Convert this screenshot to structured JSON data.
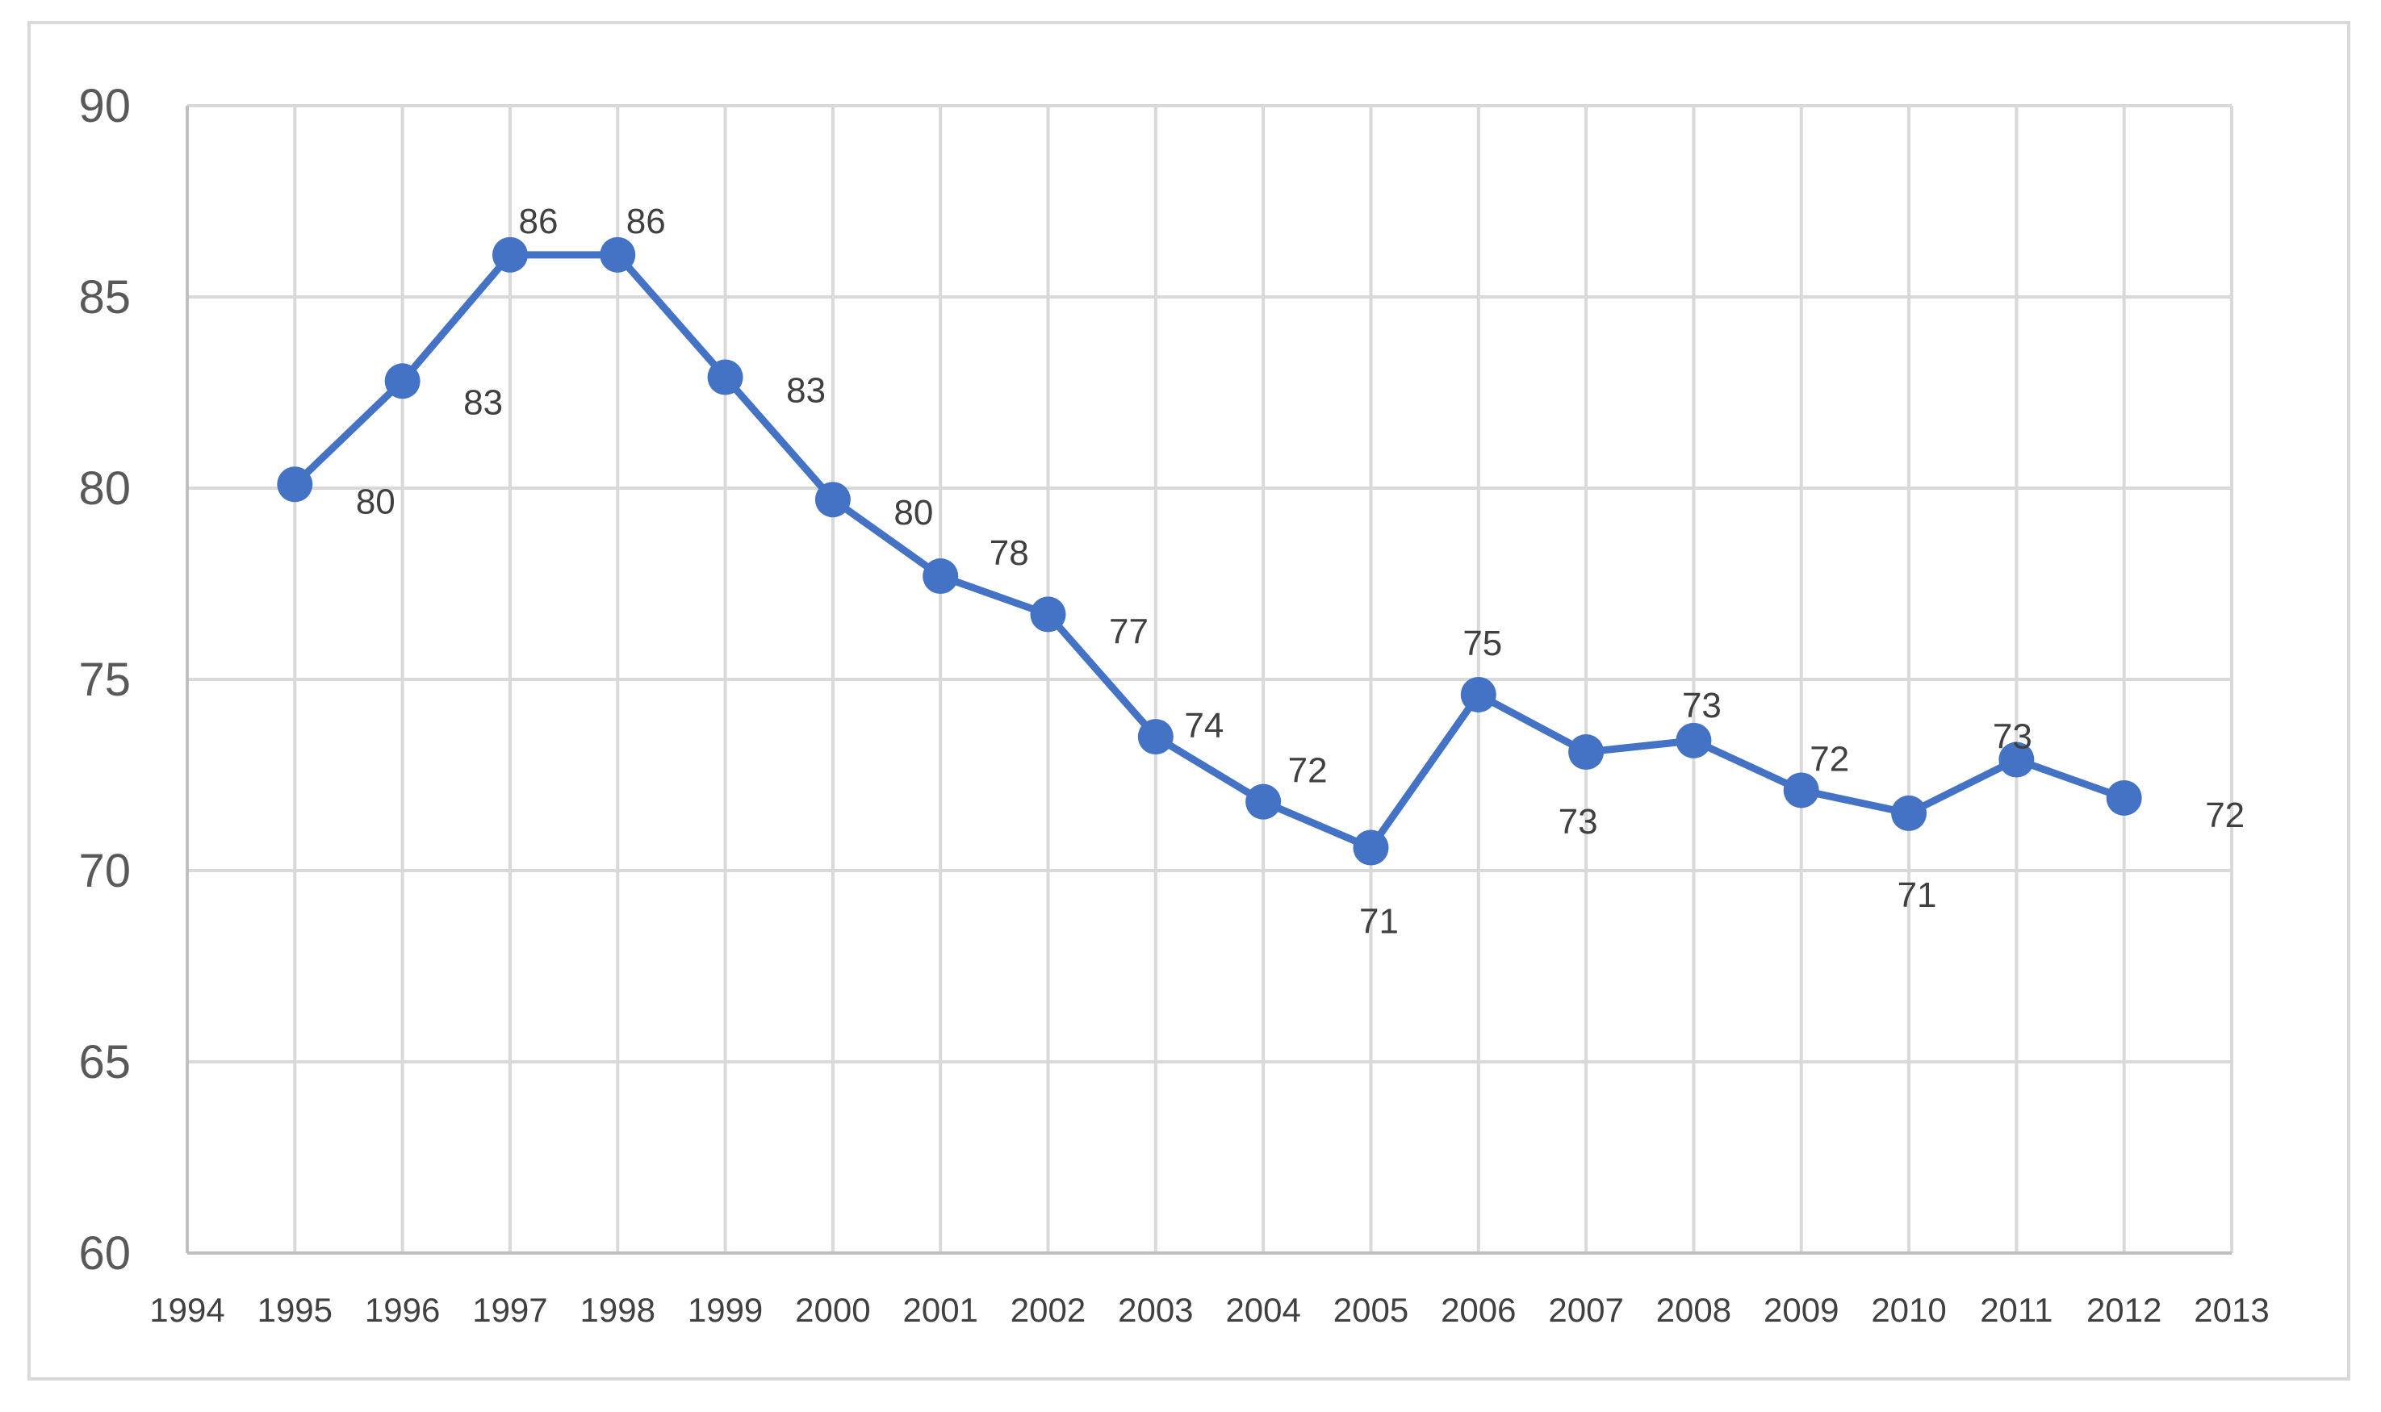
{
  "chart_data": {
    "type": "line",
    "title": "",
    "xlabel": "",
    "ylabel": "",
    "x_ticks": [
      "1994",
      "1995",
      "1996",
      "1997",
      "1998",
      "1999",
      "2000",
      "2001",
      "2002",
      "2003",
      "2004",
      "2005",
      "2006",
      "2007",
      "2008",
      "2009",
      "2010",
      "2011",
      "2012",
      "2013"
    ],
    "xlim": [
      1994,
      2013
    ],
    "ylim": [
      60,
      90
    ],
    "y_ticks": [
      60,
      65,
      70,
      75,
      80,
      85,
      90
    ],
    "grid": true,
    "legend": "none",
    "series": [
      {
        "color": "#4472c4",
        "x": [
          1995,
          1996,
          1997,
          1998,
          1999,
          2000,
          2001,
          2002,
          2003,
          2004,
          2005,
          2006,
          2007,
          2008,
          2009,
          2010,
          2011,
          2012
        ],
        "values": [
          80.1,
          82.8,
          86.1,
          86.1,
          82.9,
          79.7,
          77.7,
          76.7,
          73.5,
          71.8,
          70.6,
          74.6,
          73.1,
          73.4,
          72.1,
          71.5,
          72.9,
          71.9
        ],
        "labels": [
          "80",
          "83",
          "86",
          "86",
          "83",
          "80",
          "78",
          "77",
          "74",
          "72",
          "71",
          "75",
          "73",
          "73",
          "72",
          "71",
          "73",
          "72"
        ]
      }
    ]
  }
}
